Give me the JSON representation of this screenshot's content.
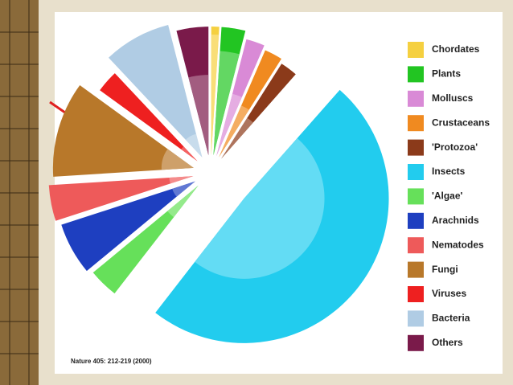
{
  "chart_data": {
    "type": "pie",
    "categories": [
      "Chordates",
      "Plants",
      "Molluscs",
      "Crustaceans",
      "'Protozoa'",
      "Insects",
      "'Algae'",
      "Arachnids",
      "Nematodes",
      "Fungi",
      "Viruses",
      "Bacteria",
      "Others"
    ],
    "values": [
      1,
      3,
      2.5,
      2.5,
      2.5,
      49,
      3.5,
      6,
      4,
      11,
      3,
      8,
      4
    ],
    "radius": [
      160,
      160,
      150,
      145,
      140,
      180,
      170,
      175,
      180,
      175,
      150,
      170,
      160
    ],
    "inner_radius": [
      150,
      130,
      80,
      70,
      60,
      100,
      50,
      30,
      30,
      40,
      25,
      30,
      100
    ],
    "colors": [
      "#f5d040",
      "#22c522",
      "#d98ad6",
      "#f08a20",
      "#8b3a1a",
      "#22ccee",
      "#66e05a",
      "#1e3fc0",
      "#ee5a5a",
      "#b8782a",
      "#ee2020",
      "#b0cce4",
      "#7a1a4a"
    ],
    "legend": "right",
    "source": "Nature 405: 212-219 (2000)"
  }
}
